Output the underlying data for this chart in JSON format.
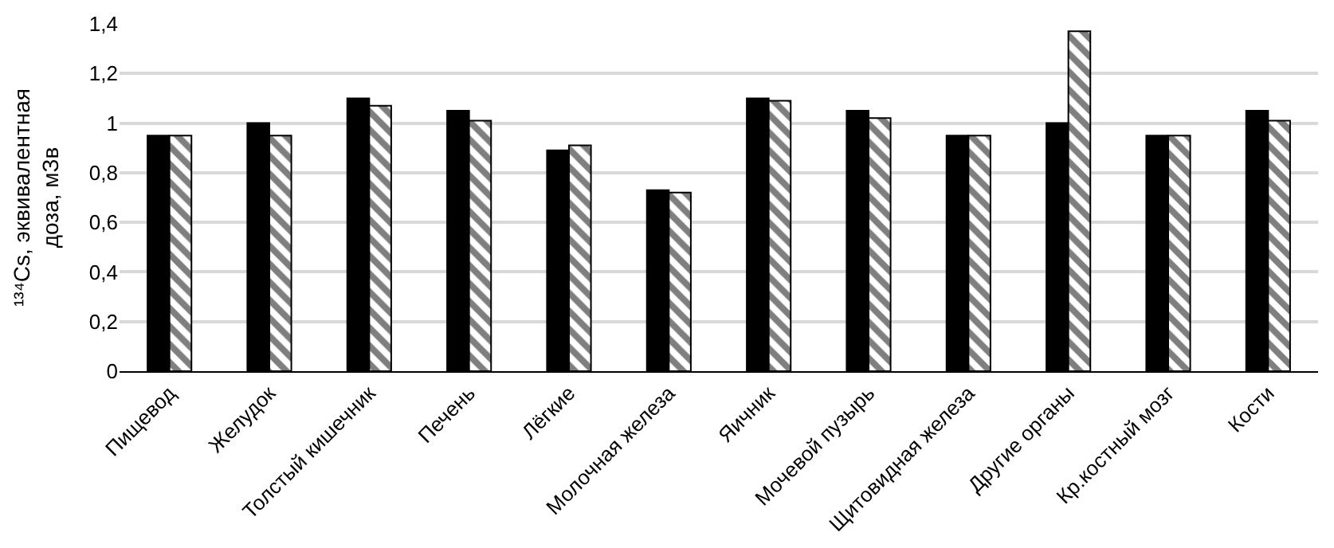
{
  "chart_data": {
    "type": "bar",
    "ylabel": "¹³⁴Cs, эквивалентная\nдоза, мЗв",
    "categories": [
      "Пищевод",
      "Желудок",
      "Толстый кишечник",
      "Печень",
      "Лёгкие",
      "Молочная железа",
      "Яичник",
      "Мочевой пузырь",
      "Щитовидная железа",
      "Другие органы",
      "Кр.костный мозг",
      "Кости"
    ],
    "series": [
      {
        "color": "#000000",
        "values": [
          0.95,
          1.0,
          1.1,
          1.05,
          0.89,
          0.73,
          1.1,
          1.05,
          0.95,
          1.0,
          0.95,
          1.05
        ]
      },
      {
        "color": "#000000",
        "values": [
          0.95,
          0.95,
          1.07,
          1.01,
          0.91,
          0.72,
          1.09,
          1.02,
          0.95,
          1.37,
          0.95,
          1.01
        ]
      }
    ],
    "ylim": [
      0,
      1.4
    ],
    "yticks": [
      0,
      {
        "value": 0.2,
        "label": "0,2"
      },
      {
        "value": 0.4,
        "label": "0,4"
      },
      {
        "value": 0.6,
        "label": "0,6"
      },
      {
        "value": 0.8,
        "label": "0,8"
      },
      1,
      {
        "value": 1.2,
        "label": "1,2"
      },
      {
        "value": 1.4,
        "label": "1,4"
      }
    ],
    "grid": "y"
  }
}
